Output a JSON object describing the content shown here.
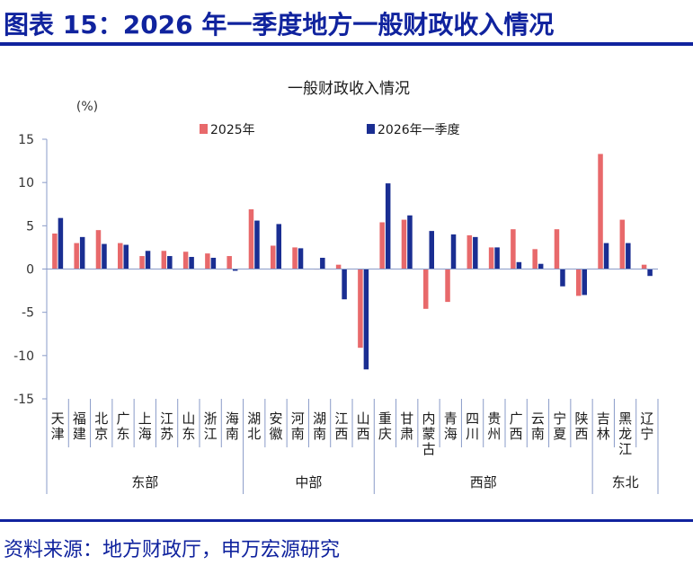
{
  "header": {
    "title": "图表 15：2026 年一季度地方一般财政收入情况"
  },
  "footer": {
    "source": "资料来源：地方财政厅，申万宏源研究"
  },
  "colors": {
    "brand": "#10239e",
    "series_2025": "#e8696b",
    "series_2026": "#1a2e92",
    "axis": "#8a9bc8"
  },
  "chart_data": {
    "type": "bar",
    "title": "一般财政收入情况",
    "unit_label": "(%)",
    "ylim": [
      -15,
      15
    ],
    "yticks": [
      15,
      10,
      5,
      0,
      -5,
      -10,
      -15
    ],
    "grid": false,
    "legend_position": "top",
    "categories": [
      "天津",
      "福建",
      "北京",
      "广东",
      "上海",
      "江苏",
      "山东",
      "浙江",
      "海南",
      "湖北",
      "安徽",
      "河南",
      "湖南",
      "江西",
      "山西",
      "重庆",
      "甘肃",
      "内蒙古",
      "青海",
      "四川",
      "贵州",
      "广西",
      "云南",
      "宁夏",
      "陕西",
      "吉林",
      "黑龙江",
      "辽宁"
    ],
    "series": [
      {
        "name": "2025年",
        "values": [
          4.1,
          3.0,
          4.5,
          3.0,
          1.5,
          2.1,
          2.0,
          1.8,
          1.5,
          6.9,
          2.7,
          2.5,
          0.0,
          0.5,
          -9.1,
          5.4,
          5.7,
          -4.6,
          -3.8,
          3.9,
          2.5,
          4.6,
          2.3,
          4.6,
          -3.1,
          13.3,
          5.7,
          0.5
        ]
      },
      {
        "name": "2026年一季度",
        "values": [
          5.9,
          3.7,
          2.9,
          2.8,
          2.1,
          1.5,
          1.4,
          1.3,
          -0.2,
          5.6,
          5.2,
          2.4,
          1.3,
          -3.5,
          -11.6,
          9.9,
          6.2,
          4.4,
          4.0,
          3.7,
          2.5,
          0.8,
          0.6,
          -2.0,
          -3.0,
          3.0,
          3.0,
          -0.8
        ]
      }
    ],
    "regions": [
      {
        "label": "东部",
        "start": 0,
        "end": 8
      },
      {
        "label": "中部",
        "start": 9,
        "end": 14
      },
      {
        "label": "西部",
        "start": 15,
        "end": 24
      },
      {
        "label": "东北",
        "start": 25,
        "end": 27
      }
    ]
  }
}
